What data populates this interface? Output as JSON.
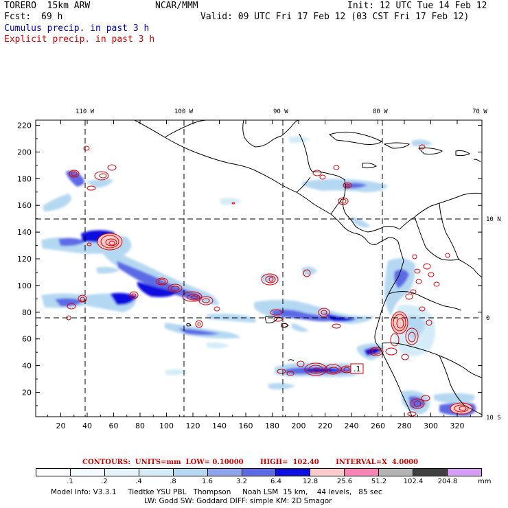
{
  "header": {
    "model": "TORERO  15km ARW",
    "center": "NCAR/MMM",
    "init": "Init: 12 UTC Tue 14 Feb 12",
    "fcst_label": "Fcst:",
    "fcst_value": "69 h",
    "valid": "Valid: 09 UTC Fri 17 Feb 12 (03 CST Fri 17 Feb 12)",
    "legend_cumulus": "Cumulus precip. in past 3 h",
    "legend_explicit": "Explicit precip. in past 3 h"
  },
  "colors": {
    "cumulus": "#0000c8",
    "explicit": "#e00000",
    "land_outline": "#000000",
    "grid": "#000000"
  },
  "top_axis": [
    "110 W",
    "100 W",
    "90 W",
    "80 W",
    "70 W"
  ],
  "right_axis": [
    "10 N",
    "0",
    "10 S"
  ],
  "y_axis": [
    "220",
    "200",
    "180",
    "160",
    "140",
    "120",
    "100",
    "80",
    "60",
    "40",
    "20"
  ],
  "x_axis": [
    "20",
    "40",
    "60",
    "80",
    "100",
    "120",
    "140",
    "160",
    "180",
    "200",
    "220",
    "240",
    "260",
    "280",
    "300",
    "320"
  ],
  "grid_labels": {
    "max_marker": ".1"
  },
  "contours": {
    "text": "CONTOURS:  UNITS=mm  LOW= 0.10000       HIGH=  102.40       INTERVAL=X  4.0000"
  },
  "colorbar": {
    "colors": [
      "#ffffff",
      "#f4fbff",
      "#e6f5fb",
      "#d4ecf8",
      "#b5d8f2",
      "#8ea3ec",
      "#5c6ae6",
      "#0f10df",
      "#ffcaca",
      "#f884b4",
      "#b4b4b4",
      "#404040",
      "#d79cf7"
    ],
    "labels": [
      ".1",
      ".2",
      ".4",
      ".8",
      "1.6",
      "3.2",
      "6.4",
      "12.8",
      "25.6",
      "51.2",
      "102.4",
      "204.8"
    ],
    "units": "mm"
  },
  "model_info": {
    "line1": "Model Info: V3.3.1     Tiedtke YSU PBL   Thompson     Noah LSM  15 km,    44 levels,   85 sec",
    "line2": "LW: Godd SW: Goddard DIFF: simple KM: 2D Smagor"
  }
}
